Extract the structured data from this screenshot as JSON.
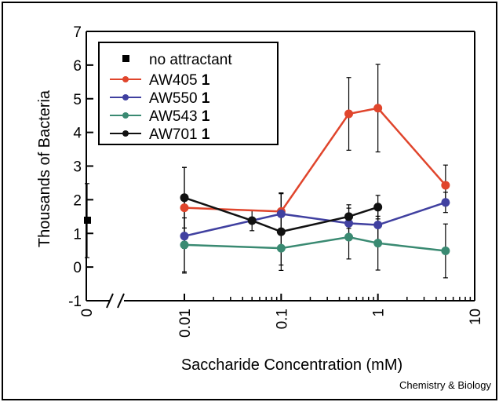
{
  "chart_data": {
    "type": "line",
    "xlabel": "Saccharide Concentration (mM)",
    "ylabel": "Thousands of Bacteria",
    "ylim": [
      -1,
      7
    ],
    "yticks": [
      "-1",
      "0",
      "1",
      "2",
      "3",
      "4",
      "5",
      "6",
      "7"
    ],
    "xscale": "log",
    "xlim": [
      0.01,
      10
    ],
    "xticks": [
      "0",
      "0.01",
      "0.1",
      "1",
      "10"
    ],
    "axis_break": true,
    "grid": false,
    "legend_position": "top-left",
    "control": {
      "name": "no attractant",
      "x": 0,
      "y": 1.38,
      "err": 1.1,
      "color": "#000000"
    },
    "series": [
      {
        "name": "AW405",
        "suffix": "1",
        "color": "#e0452c",
        "x": [
          0.01,
          0.1,
          0.5,
          1,
          5
        ],
        "y": [
          1.76,
          1.65,
          4.55,
          4.72,
          2.43
        ],
        "err": [
          1.2,
          0.55,
          1.08,
          1.3,
          0.6
        ]
      },
      {
        "name": "AW550",
        "suffix": "1",
        "color": "#4040a0",
        "x": [
          0.01,
          0.1,
          0.5,
          1,
          5
        ],
        "y": [
          0.92,
          1.58,
          1.3,
          1.25,
          1.92
        ],
        "err": [
          1.1,
          0.6,
          0.45,
          0.55,
          0.3
        ]
      },
      {
        "name": "AW543",
        "suffix": "1",
        "color": "#3a8a72",
        "x": [
          0.01,
          0.1,
          0.5,
          1,
          5
        ],
        "y": [
          0.66,
          0.56,
          0.89,
          0.71,
          0.48
        ],
        "err": [
          0.8,
          0.5,
          0.65,
          0.8,
          0.8
        ]
      },
      {
        "name": "AW701",
        "suffix": "1",
        "color": "#111111",
        "x": [
          0.01,
          0.05,
          0.1,
          0.5,
          1
        ],
        "y": [
          2.06,
          1.38,
          1.05,
          1.5,
          1.78
        ],
        "err": [
          0.9,
          0.3,
          1.15,
          0.35,
          0.35
        ]
      }
    ]
  },
  "credit": "Chemistry & Biology"
}
